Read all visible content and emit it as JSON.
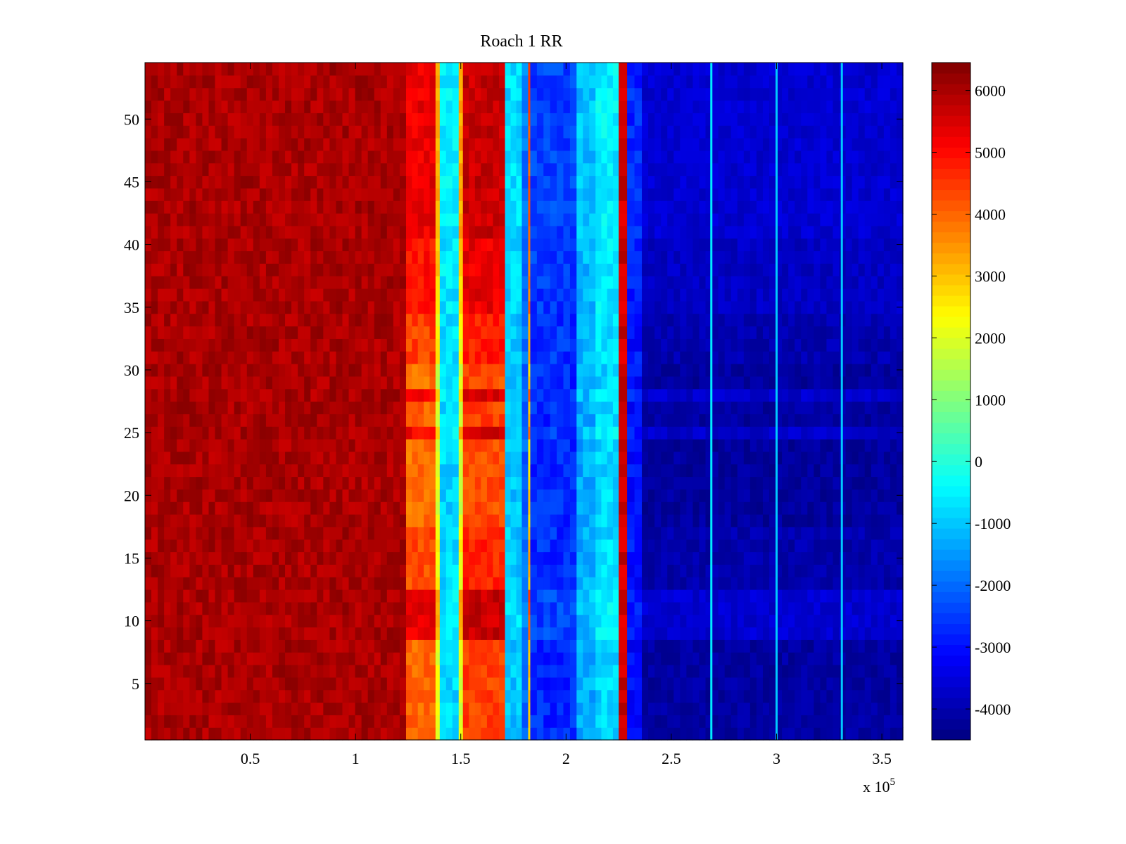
{
  "chart_data": {
    "type": "heatmap",
    "title": "Roach 1 RR",
    "xlabel": "",
    "ylabel": "",
    "x_exponent_label": "x 10",
    "x_exponent": "5",
    "xlim": [
      0,
      3.6
    ],
    "ylim": [
      0.5,
      54.5
    ],
    "x_ticks": [
      {
        "value": 0.5,
        "label": "0.5"
      },
      {
        "value": 1,
        "label": "1"
      },
      {
        "value": 1.5,
        "label": "1.5"
      },
      {
        "value": 2,
        "label": "2"
      },
      {
        "value": 2.5,
        "label": "2.5"
      },
      {
        "value": 3,
        "label": "3"
      },
      {
        "value": 3.5,
        "label": "3.5"
      }
    ],
    "y_ticks": [
      {
        "value": 5,
        "label": "5"
      },
      {
        "value": 10,
        "label": "10"
      },
      {
        "value": 15,
        "label": "15"
      },
      {
        "value": 20,
        "label": "20"
      },
      {
        "value": 25,
        "label": "25"
      },
      {
        "value": 30,
        "label": "30"
      },
      {
        "value": 35,
        "label": "35"
      },
      {
        "value": 40,
        "label": "40"
      },
      {
        "value": 45,
        "label": "45"
      },
      {
        "value": 50,
        "label": "50"
      }
    ],
    "colormap": "jet",
    "clim": [
      -4500,
      6450
    ],
    "colorbar_ticks": [
      {
        "value": 6000,
        "label": "6000"
      },
      {
        "value": 5000,
        "label": "5000"
      },
      {
        "value": 4000,
        "label": "4000"
      },
      {
        "value": 3000,
        "label": "3000"
      },
      {
        "value": 2000,
        "label": "2000"
      },
      {
        "value": 1000,
        "label": "1000"
      },
      {
        "value": 0,
        "label": "0"
      },
      {
        "value": -1000,
        "label": "-1000"
      },
      {
        "value": -2000,
        "label": "-2000"
      },
      {
        "value": -3000,
        "label": "-3000"
      },
      {
        "value": -4000,
        "label": "-4000"
      }
    ],
    "rows": 54,
    "column_bands": [
      {
        "x0": 0.0,
        "x1": 1.24,
        "value": 6000
      },
      {
        "x0": 1.24,
        "x1": 1.38,
        "value": 4600
      },
      {
        "x0": 1.38,
        "x1": 1.4,
        "value": 2600
      },
      {
        "x0": 1.4,
        "x1": 1.49,
        "value": -700
      },
      {
        "x0": 1.49,
        "x1": 1.51,
        "value": 2600
      },
      {
        "x0": 1.51,
        "x1": 1.71,
        "value": 5000
      },
      {
        "x0": 1.71,
        "x1": 1.79,
        "value": -900
      },
      {
        "x0": 1.79,
        "x1": 1.82,
        "value": -2000
      },
      {
        "x0": 1.82,
        "x1": 1.83,
        "value": 3500
      },
      {
        "x0": 1.83,
        "x1": 2.05,
        "value": -2600
      },
      {
        "x0": 2.05,
        "x1": 2.14,
        "value": -1200
      },
      {
        "x0": 2.14,
        "x1": 2.25,
        "value": -700
      },
      {
        "x0": 2.25,
        "x1": 2.29,
        "value": 5600
      },
      {
        "x0": 2.29,
        "x1": 2.36,
        "value": -2900
      },
      {
        "x0": 2.36,
        "x1": 3.6,
        "value": -3900
      }
    ],
    "row_offsets": [
      {
        "y0": 0.5,
        "y1": 8.5,
        "delta": -600
      },
      {
        "y0": 8.5,
        "y1": 12.5,
        "delta": 700
      },
      {
        "y0": 12.5,
        "y1": 17.5,
        "delta": -300
      },
      {
        "y0": 17.5,
        "y1": 24.5,
        "delta": -700
      },
      {
        "y0": 24.5,
        "y1": 25.5,
        "delta": 500
      },
      {
        "y0": 25.5,
        "y1": 27.5,
        "delta": -600
      },
      {
        "y0": 27.5,
        "y1": 28.5,
        "delta": 500
      },
      {
        "y0": 28.5,
        "y1": 30.5,
        "delta": -700
      },
      {
        "y0": 30.5,
        "y1": 34.5,
        "delta": -200
      },
      {
        "y0": 34.5,
        "y1": 40.5,
        "delta": 300
      },
      {
        "y0": 40.5,
        "y1": 54.5,
        "delta": 700
      }
    ],
    "thin_lines": [
      {
        "x": 2.69,
        "value": -600
      },
      {
        "x": 3.0,
        "value": -1000
      },
      {
        "x": 3.31,
        "value": -1000
      }
    ]
  }
}
